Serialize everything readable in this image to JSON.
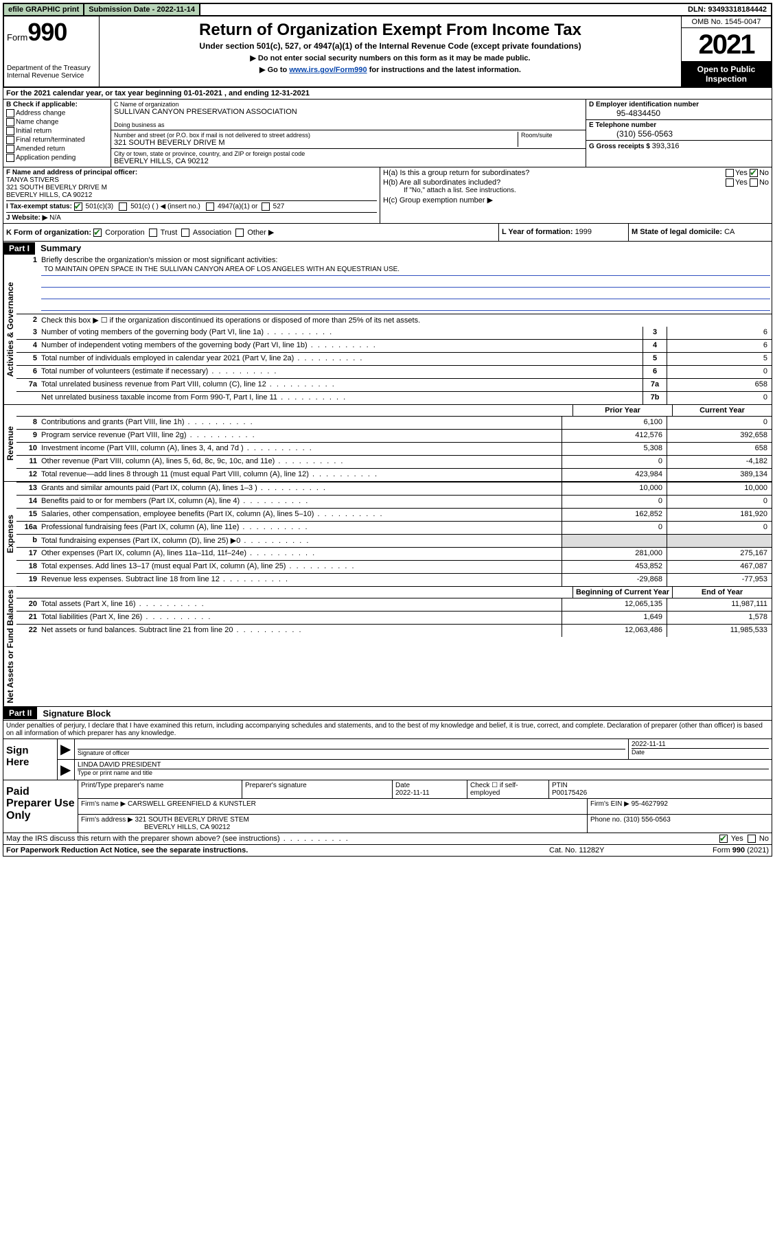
{
  "topbar": {
    "efile": "efile GRAPHIC print",
    "subdate_label": "Submission Date - ",
    "subdate": "2022-11-14",
    "dln_label": "DLN: ",
    "dln": "93493318184442"
  },
  "header": {
    "form_label": "Form",
    "form_num": "990",
    "dept": "Department of the Treasury\nInternal Revenue Service",
    "title": "Return of Organization Exempt From Income Tax",
    "sub1": "Under section 501(c), 527, or 4947(a)(1) of the Internal Revenue Code (except private foundations)",
    "sub2": "▶ Do not enter social security numbers on this form as it may be made public.",
    "sub3_pre": "▶ Go to ",
    "sub3_link": "www.irs.gov/Form990",
    "sub3_post": " for instructions and the latest information.",
    "omb": "OMB No. 1545-0047",
    "year": "2021",
    "open": "Open to Public Inspection"
  },
  "rowA": {
    "label": "A",
    "text": "For the 2021 calendar year, or tax year beginning 01-01-2021   , and ending 12-31-2021"
  },
  "B": {
    "label": "B Check if applicable:",
    "items": [
      "Address change",
      "Name change",
      "Initial return",
      "Final return/terminated",
      "Amended return",
      "Application pending"
    ]
  },
  "C": {
    "name_label": "C Name of organization",
    "name": "SULLIVAN CANYON PRESERVATION ASSOCIATION",
    "dba_label": "Doing business as",
    "dba": "",
    "addr_label": "Number and street (or P.O. box if mail is not delivered to street address)",
    "room_label": "Room/suite",
    "addr": "321 SOUTH BEVERLY DRIVE M",
    "city_label": "City or town, state or province, country, and ZIP or foreign postal code",
    "city": "BEVERLY HILLS, CA  90212"
  },
  "D": {
    "label": "D Employer identification number",
    "val": "95-4834450"
  },
  "E": {
    "label": "E Telephone number",
    "val": "(310) 556-0563"
  },
  "G": {
    "label": "G Gross receipts $ ",
    "val": "393,316"
  },
  "F": {
    "label": "F  Name and address of principal officer:",
    "name": "TANYA STIVERS",
    "addr1": "321 SOUTH BEVERLY DRIVE M",
    "addr2": "BEVERLY HILLS, CA  90212"
  },
  "H": {
    "a": "H(a)  Is this a group return for subordinates?",
    "b": "H(b)  Are all subordinates included?",
    "b_note": "If \"No,\" attach a list. See instructions.",
    "c": "H(c)  Group exemption number ▶",
    "a_yes": false,
    "a_no": true
  },
  "I": {
    "label": "I    Tax-exempt status:",
    "opt1": "501(c)(3)",
    "opt2": "501(c) (  ) ◀ (insert no.)",
    "opt3": "4947(a)(1) or",
    "opt4": "527"
  },
  "J": {
    "label": "J   Website: ▶",
    "val": "N/A"
  },
  "K": {
    "label": "K Form of organization:",
    "opts": [
      "Corporation",
      "Trust",
      "Association",
      "Other ▶"
    ],
    "L_label": "L Year of formation: ",
    "L_val": "1999",
    "M_label": "M State of legal domicile: ",
    "M_val": "CA"
  },
  "part1": {
    "hdr": "Part I",
    "title": "Summary",
    "q1": "Briefly describe the organization's mission or most significant activities:",
    "mission": "TO MAINTAIN OPEN SPACE IN THE SULLIVAN CANYON AREA OF LOS ANGELES WITH AN EQUESTRIAN USE.",
    "q2": "Check this box ▶ ☐  if the organization discontinued its operations or disposed of more than 25% of its net assets.",
    "lines_single": [
      {
        "n": "3",
        "d": "Number of voting members of the governing body (Part VI, line 1a)",
        "box": "3",
        "v": "6"
      },
      {
        "n": "4",
        "d": "Number of independent voting members of the governing body (Part VI, line 1b)",
        "box": "4",
        "v": "6"
      },
      {
        "n": "5",
        "d": "Total number of individuals employed in calendar year 2021 (Part V, line 2a)",
        "box": "5",
        "v": "5"
      },
      {
        "n": "6",
        "d": "Total number of volunteers (estimate if necessary)",
        "box": "6",
        "v": "0"
      },
      {
        "n": "7a",
        "d": "Total unrelated business revenue from Part VIII, column (C), line 12",
        "box": "7a",
        "v": "658"
      },
      {
        "n": "",
        "d": "Net unrelated business taxable income from Form 990-T, Part I, line 11",
        "box": "7b",
        "v": "0"
      }
    ],
    "col_hdrs": {
      "p": "Prior Year",
      "c": "Current Year",
      "b": "Beginning of Current Year",
      "e": "End of Year"
    },
    "revenue": [
      {
        "n": "8",
        "d": "Contributions and grants (Part VIII, line 1h)",
        "p": "6,100",
        "c": "0"
      },
      {
        "n": "9",
        "d": "Program service revenue (Part VIII, line 2g)",
        "p": "412,576",
        "c": "392,658"
      },
      {
        "n": "10",
        "d": "Investment income (Part VIII, column (A), lines 3, 4, and 7d )",
        "p": "5,308",
        "c": "658"
      },
      {
        "n": "11",
        "d": "Other revenue (Part VIII, column (A), lines 5, 6d, 8c, 9c, 10c, and 11e)",
        "p": "0",
        "c": "-4,182"
      },
      {
        "n": "12",
        "d": "Total revenue—add lines 8 through 11 (must equal Part VIII, column (A), line 12)",
        "p": "423,984",
        "c": "389,134"
      }
    ],
    "expenses": [
      {
        "n": "13",
        "d": "Grants and similar amounts paid (Part IX, column (A), lines 1–3 )",
        "p": "10,000",
        "c": "10,000"
      },
      {
        "n": "14",
        "d": "Benefits paid to or for members (Part IX, column (A), line 4)",
        "p": "0",
        "c": "0"
      },
      {
        "n": "15",
        "d": "Salaries, other compensation, employee benefits (Part IX, column (A), lines 5–10)",
        "p": "162,852",
        "c": "181,920"
      },
      {
        "n": "16a",
        "d": "Professional fundraising fees (Part IX, column (A), line 11e)",
        "p": "0",
        "c": "0"
      },
      {
        "n": "b",
        "d": "Total fundraising expenses (Part IX, column (D), line 25) ▶0",
        "p": "",
        "c": "",
        "shade": true
      },
      {
        "n": "17",
        "d": "Other expenses (Part IX, column (A), lines 11a–11d, 11f–24e)",
        "p": "281,000",
        "c": "275,167"
      },
      {
        "n": "18",
        "d": "Total expenses. Add lines 13–17 (must equal Part IX, column (A), line 25)",
        "p": "453,852",
        "c": "467,087"
      },
      {
        "n": "19",
        "d": "Revenue less expenses. Subtract line 18 from line 12",
        "p": "-29,868",
        "c": "-77,953"
      }
    ],
    "netassets": [
      {
        "n": "20",
        "d": "Total assets (Part X, line 16)",
        "p": "12,065,135",
        "c": "11,987,111"
      },
      {
        "n": "21",
        "d": "Total liabilities (Part X, line 26)",
        "p": "1,649",
        "c": "1,578"
      },
      {
        "n": "22",
        "d": "Net assets or fund balances. Subtract line 21 from line 20",
        "p": "12,063,486",
        "c": "11,985,533"
      }
    ]
  },
  "vert": {
    "gov": "Activities & Governance",
    "rev": "Revenue",
    "exp": "Expenses",
    "net": "Net Assets or Fund Balances"
  },
  "part2": {
    "hdr": "Part II",
    "title": "Signature Block",
    "decl": "Under penalties of perjury, I declare that I have examined this return, including accompanying schedules and statements, and to the best of my knowledge and belief, it is true, correct, and complete. Declaration of preparer (other than officer) is based on all information of which preparer has any knowledge."
  },
  "sign": {
    "here": "Sign Here",
    "sig_label": "Signature of officer",
    "date_label": "Date",
    "date": "2022-11-11",
    "name": "LINDA DAVID  PRESIDENT",
    "name_label": "Type or print name and title"
  },
  "paid": {
    "label": "Paid Preparer Use Only",
    "h1": "Print/Type preparer's name",
    "h2": "Preparer's signature",
    "h3": "Date",
    "date": "2022-11-11",
    "h4": "Check ☐ if self-employed",
    "ptin_label": "PTIN",
    "ptin": "P00175426",
    "firm_label": "Firm's name    ▶ ",
    "firm": "CARSWELL GREENFIELD & KUNSTLER",
    "ein_label": "Firm's EIN ▶ ",
    "ein": "95-4627992",
    "addr_label": "Firm's address ▶ ",
    "addr1": "321 SOUTH BEVERLY DRIVE STEM",
    "addr2": "BEVERLY HILLS, CA  90212",
    "phone_label": "Phone no. ",
    "phone": "(310) 556-0563"
  },
  "discuss": {
    "q": "May the IRS discuss this return with the preparer shown above? (see instructions)",
    "yes": true
  },
  "footer": {
    "l": "For Paperwork Reduction Act Notice, see the separate instructions.",
    "m": "Cat. No. 11282Y",
    "r": "Form 990 (2021)"
  }
}
